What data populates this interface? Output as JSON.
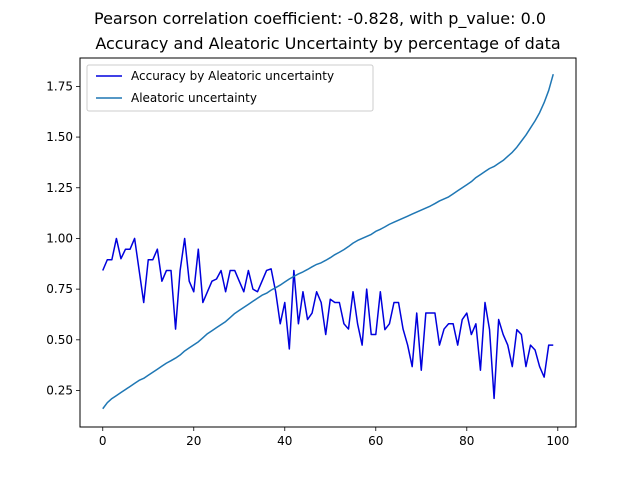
{
  "chart_data": {
    "type": "line",
    "suptitle": "Pearson correlation coefficient: -0.828, with p_value: 0.0",
    "title": "Accuracy and Aleatoric Uncertainty by percentage of data",
    "xlabel": "",
    "ylabel": "",
    "xlim": [
      -5,
      104
    ],
    "ylim": [
      0.07,
      1.89
    ],
    "xticks": [
      0,
      20,
      40,
      60,
      80,
      100
    ],
    "yticks": [
      "0.25",
      "0.50",
      "0.75",
      "1.00",
      "1.25",
      "1.50",
      "1.75"
    ],
    "grid": false,
    "legend_position": "upper-left",
    "series": [
      {
        "name": "Accuracy by Aleatoric uncertainty",
        "color": "#0000dd",
        "x": [
          0,
          1,
          2,
          3,
          4,
          5,
          6,
          7,
          8,
          9,
          10,
          11,
          12,
          13,
          14,
          15,
          16,
          17,
          18,
          19,
          20,
          21,
          22,
          23,
          24,
          25,
          26,
          27,
          28,
          29,
          30,
          31,
          32,
          33,
          34,
          35,
          36,
          37,
          38,
          39,
          40,
          41,
          42,
          43,
          44,
          45,
          46,
          47,
          48,
          49,
          50,
          51,
          52,
          53,
          54,
          55,
          56,
          57,
          58,
          59,
          60,
          61,
          62,
          63,
          64,
          65,
          66,
          67,
          68,
          69,
          70,
          71,
          72,
          73,
          74,
          75,
          76,
          77,
          78,
          79,
          80,
          81,
          82,
          83,
          84,
          85,
          86,
          87,
          88,
          89,
          90,
          91,
          92,
          93,
          94,
          95,
          96,
          97,
          98,
          99
        ],
        "values": [
          0.842,
          0.895,
          0.895,
          1.0,
          0.9,
          0.947,
          0.947,
          1.0,
          0.842,
          0.684,
          0.895,
          0.895,
          0.947,
          0.789,
          0.842,
          0.842,
          0.553,
          0.842,
          1.0,
          0.789,
          0.737,
          0.947,
          0.684,
          0.737,
          0.789,
          0.8,
          0.842,
          0.737,
          0.842,
          0.842,
          0.789,
          0.737,
          0.842,
          0.75,
          0.737,
          0.789,
          0.842,
          0.85,
          0.737,
          0.579,
          0.684,
          0.455,
          0.842,
          0.579,
          0.737,
          0.6,
          0.632,
          0.737,
          0.684,
          0.526,
          0.7,
          0.684,
          0.684,
          0.579,
          0.553,
          0.737,
          0.579,
          0.474,
          0.75,
          0.526,
          0.526,
          0.737,
          0.55,
          0.579,
          0.684,
          0.684,
          0.553,
          0.474,
          0.368,
          0.632,
          0.35,
          0.632,
          0.632,
          0.632,
          0.474,
          0.553,
          0.579,
          0.579,
          0.474,
          0.6,
          0.632,
          0.526,
          0.579,
          0.35,
          0.684,
          0.55,
          0.211,
          0.6,
          0.526,
          0.474,
          0.368,
          0.55,
          0.526,
          0.368,
          0.474,
          0.45,
          0.368,
          0.316,
          0.474,
          0.474
        ]
      },
      {
        "name": "Aleatoric uncertainty",
        "color": "#1f77b4",
        "x": [
          0,
          1,
          2,
          3,
          4,
          5,
          6,
          7,
          8,
          9,
          10,
          11,
          12,
          13,
          14,
          15,
          16,
          17,
          18,
          19,
          20,
          21,
          22,
          23,
          24,
          25,
          26,
          27,
          28,
          29,
          30,
          31,
          32,
          33,
          34,
          35,
          36,
          37,
          38,
          39,
          40,
          41,
          42,
          43,
          44,
          45,
          46,
          47,
          48,
          49,
          50,
          51,
          52,
          53,
          54,
          55,
          56,
          57,
          58,
          59,
          60,
          61,
          62,
          63,
          64,
          65,
          66,
          67,
          68,
          69,
          70,
          71,
          72,
          73,
          74,
          75,
          76,
          77,
          78,
          79,
          80,
          81,
          82,
          83,
          84,
          85,
          86,
          87,
          88,
          89,
          90,
          91,
          92,
          93,
          94,
          95,
          96,
          97,
          98,
          99
        ],
        "values": [
          0.16,
          0.19,
          0.21,
          0.225,
          0.24,
          0.255,
          0.27,
          0.285,
          0.3,
          0.31,
          0.325,
          0.34,
          0.355,
          0.37,
          0.385,
          0.397,
          0.41,
          0.425,
          0.445,
          0.46,
          0.475,
          0.49,
          0.51,
          0.53,
          0.545,
          0.56,
          0.575,
          0.59,
          0.61,
          0.63,
          0.645,
          0.66,
          0.675,
          0.69,
          0.705,
          0.72,
          0.73,
          0.745,
          0.757,
          0.77,
          0.785,
          0.8,
          0.813,
          0.825,
          0.835,
          0.847,
          0.86,
          0.872,
          0.88,
          0.892,
          0.905,
          0.92,
          0.932,
          0.945,
          0.96,
          0.977,
          0.99,
          1.0,
          1.01,
          1.02,
          1.035,
          1.045,
          1.057,
          1.07,
          1.08,
          1.09,
          1.1,
          1.11,
          1.12,
          1.13,
          1.14,
          1.15,
          1.16,
          1.172,
          1.185,
          1.195,
          1.205,
          1.22,
          1.235,
          1.25,
          1.265,
          1.28,
          1.3,
          1.315,
          1.33,
          1.345,
          1.355,
          1.37,
          1.385,
          1.405,
          1.425,
          1.45,
          1.48,
          1.51,
          1.545,
          1.58,
          1.62,
          1.67,
          1.73,
          1.81
        ]
      }
    ]
  }
}
